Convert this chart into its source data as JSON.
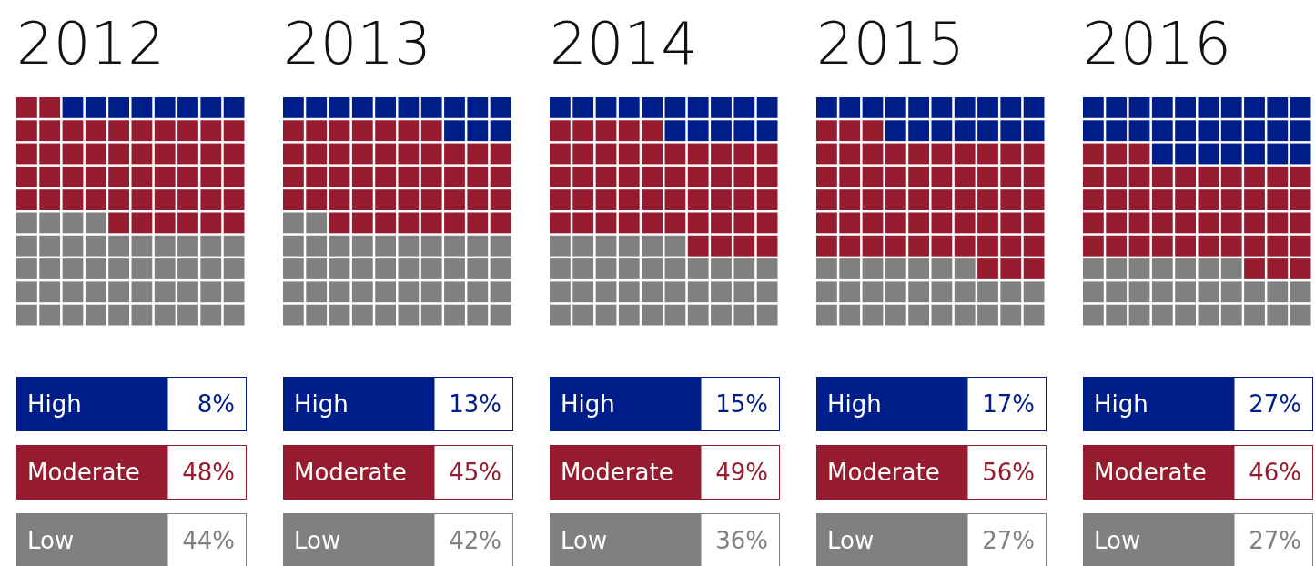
{
  "chart_data": [
    {
      "type": "other",
      "title": "2012",
      "categories": [
        "High",
        "Moderate",
        "Low"
      ],
      "values": [
        8,
        48,
        44
      ],
      "colors": [
        "#001e8a",
        "#971b2f",
        "#808080"
      ],
      "value_labels": [
        "8%",
        "48%",
        "44%"
      ]
    },
    {
      "type": "other",
      "title": "2013",
      "categories": [
        "High",
        "Moderate",
        "Low"
      ],
      "values": [
        13,
        45,
        42
      ],
      "colors": [
        "#001e8a",
        "#971b2f",
        "#808080"
      ],
      "value_labels": [
        "13%",
        "45%",
        "42%"
      ]
    },
    {
      "type": "other",
      "title": "2014",
      "categories": [
        "High",
        "Moderate",
        "Low"
      ],
      "values": [
        15,
        49,
        36
      ],
      "colors": [
        "#001e8a",
        "#971b2f",
        "#808080"
      ],
      "value_labels": [
        "15%",
        "49%",
        "36%"
      ]
    },
    {
      "type": "other",
      "title": "2015",
      "categories": [
        "High",
        "Moderate",
        "Low"
      ],
      "values": [
        17,
        56,
        27
      ],
      "colors": [
        "#001e8a",
        "#971b2f",
        "#808080"
      ],
      "value_labels": [
        "17%",
        "56%",
        "27%"
      ]
    },
    {
      "type": "other",
      "title": "2016",
      "categories": [
        "High",
        "Moderate",
        "Low"
      ],
      "values": [
        27,
        46,
        27
      ],
      "colors": [
        "#001e8a",
        "#971b2f",
        "#808080"
      ],
      "value_labels": [
        "27%",
        "46%",
        "27%"
      ]
    }
  ]
}
